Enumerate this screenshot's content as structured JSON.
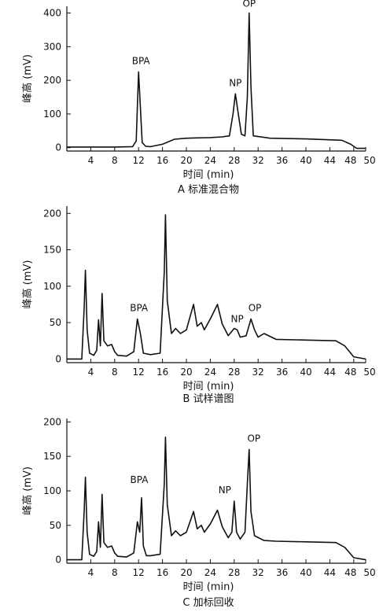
{
  "chart_data": [
    {
      "type": "line",
      "caption": "A 标准混合物",
      "xlabel": "时间 (min)",
      "ylabel": "峰高 (mV)",
      "xlim": [
        0,
        50
      ],
      "ylim": [
        -10,
        420
      ],
      "x_ticks": [
        4,
        8,
        12,
        16,
        20,
        24,
        28,
        32,
        36,
        40,
        44,
        48,
        50
      ],
      "x_tick_labels": [
        "4",
        "8",
        "12",
        "16",
        "20",
        "24",
        "28",
        "32",
        "36",
        "40",
        "44",
        "48",
        "50"
      ],
      "y_ticks": [
        0,
        100,
        200,
        300,
        400
      ],
      "y_tick_labels": [
        "0",
        "100",
        "200",
        "300",
        "400"
      ],
      "annotations": [
        {
          "text": "BPA",
          "x": 12.0,
          "y": 225
        },
        {
          "text": "NP",
          "x": 28.2,
          "y": 160
        },
        {
          "text": "OP",
          "x": 30.5,
          "y": 400
        }
      ],
      "series": [
        {
          "points": [
            [
              0,
              2
            ],
            [
              8,
              2
            ],
            [
              11,
              3
            ],
            [
              11.6,
              20
            ],
            [
              12.0,
              225
            ],
            [
              12.3,
              120
            ],
            [
              12.6,
              15
            ],
            [
              13.2,
              4
            ],
            [
              14,
              3
            ],
            [
              16,
              10
            ],
            [
              18,
              25
            ],
            [
              20,
              28
            ],
            [
              24,
              30
            ],
            [
              26,
              32
            ],
            [
              27.2,
              35
            ],
            [
              27.8,
              100
            ],
            [
              28.2,
              160
            ],
            [
              28.6,
              110
            ],
            [
              29.2,
              40
            ],
            [
              29.8,
              35
            ],
            [
              30.2,
              150
            ],
            [
              30.5,
              400
            ],
            [
              30.8,
              180
            ],
            [
              31.2,
              35
            ],
            [
              34,
              28
            ],
            [
              40,
              26
            ],
            [
              46,
              22
            ],
            [
              47.5,
              10
            ],
            [
              48.5,
              -2
            ],
            [
              50,
              -2
            ]
          ]
        }
      ]
    },
    {
      "type": "line",
      "caption": "B 试样谱图",
      "xlabel": "时间 (min)",
      "ylabel": "峰高 (mV)",
      "xlim": [
        0,
        50
      ],
      "ylim": [
        -5,
        210
      ],
      "x_ticks": [
        4,
        8,
        12,
        16,
        20,
        24,
        28,
        32,
        36,
        40,
        44,
        48,
        50
      ],
      "x_tick_labels": [
        "4",
        "8",
        "12",
        "16",
        "20",
        "24",
        "28",
        "32",
        "36",
        "40",
        "44",
        "48",
        "50"
      ],
      "y_ticks": [
        0,
        50,
        100,
        150,
        200
      ],
      "y_tick_labels": [
        "0",
        "50",
        "100",
        "150",
        "200"
      ],
      "annotations": [
        {
          "text": "BPA",
          "x": 11.8,
          "y": 55
        },
        {
          "text": "NP",
          "x": 28.5,
          "y": 40
        },
        {
          "text": "OP",
          "x": 30.8,
          "y": 55
        }
      ],
      "series": [
        {
          "points": [
            [
              0,
              0
            ],
            [
              2.5,
              0
            ],
            [
              2.9,
              70
            ],
            [
              3.1,
              122
            ],
            [
              3.4,
              40
            ],
            [
              3.8,
              8
            ],
            [
              4.5,
              5
            ],
            [
              5.0,
              12
            ],
            [
              5.3,
              54
            ],
            [
              5.6,
              18
            ],
            [
              5.9,
              90
            ],
            [
              6.2,
              25
            ],
            [
              6.8,
              18
            ],
            [
              7.5,
              20
            ],
            [
              8.0,
              10
            ],
            [
              8.5,
              5
            ],
            [
              10,
              4
            ],
            [
              11.2,
              10
            ],
            [
              11.8,
              55
            ],
            [
              12.3,
              35
            ],
            [
              12.8,
              8
            ],
            [
              14,
              6
            ],
            [
              15.6,
              8
            ],
            [
              16.3,
              120
            ],
            [
              16.5,
              198
            ],
            [
              16.8,
              80
            ],
            [
              17.5,
              35
            ],
            [
              18.2,
              42
            ],
            [
              19,
              35
            ],
            [
              20,
              40
            ],
            [
              21.2,
              75
            ],
            [
              21.8,
              45
            ],
            [
              22.5,
              50
            ],
            [
              23,
              40
            ],
            [
              24,
              55
            ],
            [
              25.2,
              75
            ],
            [
              26,
              48
            ],
            [
              27,
              32
            ],
            [
              28,
              42
            ],
            [
              28.5,
              40
            ],
            [
              29,
              30
            ],
            [
              30,
              32
            ],
            [
              30.8,
              55
            ],
            [
              31.4,
              40
            ],
            [
              32,
              30
            ],
            [
              33,
              35
            ],
            [
              35,
              27
            ],
            [
              40,
              26
            ],
            [
              45,
              25
            ],
            [
              46.5,
              18
            ],
            [
              48,
              3
            ],
            [
              50,
              0
            ]
          ]
        }
      ]
    },
    {
      "type": "line",
      "caption": "C 加标回收",
      "xlabel": "时间 (min)",
      "ylabel": "峰高 (mV)",
      "xlim": [
        0,
        50
      ],
      "ylim": [
        -5,
        205
      ],
      "x_ticks": [
        4,
        8,
        12,
        16,
        20,
        24,
        28,
        32,
        36,
        40,
        44,
        48,
        50
      ],
      "x_tick_labels": [
        "4",
        "8",
        "12",
        "16",
        "20",
        "24",
        "28",
        "32",
        "36",
        "40",
        "44",
        "48",
        "50"
      ],
      "y_ticks": [
        0,
        50,
        100,
        150,
        200
      ],
      "y_tick_labels": [
        "0",
        "50",
        "100",
        "150",
        "200"
      ],
      "annotations": [
        {
          "text": "BPA",
          "x": 12.5,
          "y": 100
        },
        {
          "text": "NP",
          "x": 28.0,
          "y": 85
        },
        {
          "text": "OP",
          "x": 30.5,
          "y": 160
        }
      ],
      "series": [
        {
          "points": [
            [
              0,
              0
            ],
            [
              2.5,
              0
            ],
            [
              2.9,
              70
            ],
            [
              3.1,
              120
            ],
            [
              3.4,
              40
            ],
            [
              3.8,
              8
            ],
            [
              4.5,
              5
            ],
            [
              5.0,
              12
            ],
            [
              5.3,
              55
            ],
            [
              5.6,
              18
            ],
            [
              5.9,
              95
            ],
            [
              6.2,
              25
            ],
            [
              6.8,
              18
            ],
            [
              7.5,
              20
            ],
            [
              8.0,
              10
            ],
            [
              8.5,
              5
            ],
            [
              10,
              4
            ],
            [
              11.2,
              10
            ],
            [
              11.8,
              55
            ],
            [
              12.2,
              40
            ],
            [
              12.5,
              90
            ],
            [
              12.8,
              20
            ],
            [
              13.3,
              6
            ],
            [
              14,
              6
            ],
            [
              15.6,
              8
            ],
            [
              16.3,
              110
            ],
            [
              16.5,
              178
            ],
            [
              16.8,
              80
            ],
            [
              17.5,
              35
            ],
            [
              18.2,
              42
            ],
            [
              19,
              35
            ],
            [
              20,
              40
            ],
            [
              21.2,
              70
            ],
            [
              21.8,
              45
            ],
            [
              22.5,
              50
            ],
            [
              23,
              40
            ],
            [
              24,
              52
            ],
            [
              25.2,
              72
            ],
            [
              26,
              48
            ],
            [
              27,
              32
            ],
            [
              27.6,
              40
            ],
            [
              28.0,
              85
            ],
            [
              28.4,
              40
            ],
            [
              29,
              30
            ],
            [
              29.8,
              40
            ],
            [
              30.2,
              110
            ],
            [
              30.5,
              160
            ],
            [
              30.8,
              70
            ],
            [
              31.4,
              35
            ],
            [
              33,
              28
            ],
            [
              35,
              27
            ],
            [
              40,
              26
            ],
            [
              45,
              25
            ],
            [
              46.5,
              18
            ],
            [
              48,
              3
            ],
            [
              50,
              0
            ]
          ]
        }
      ]
    }
  ]
}
